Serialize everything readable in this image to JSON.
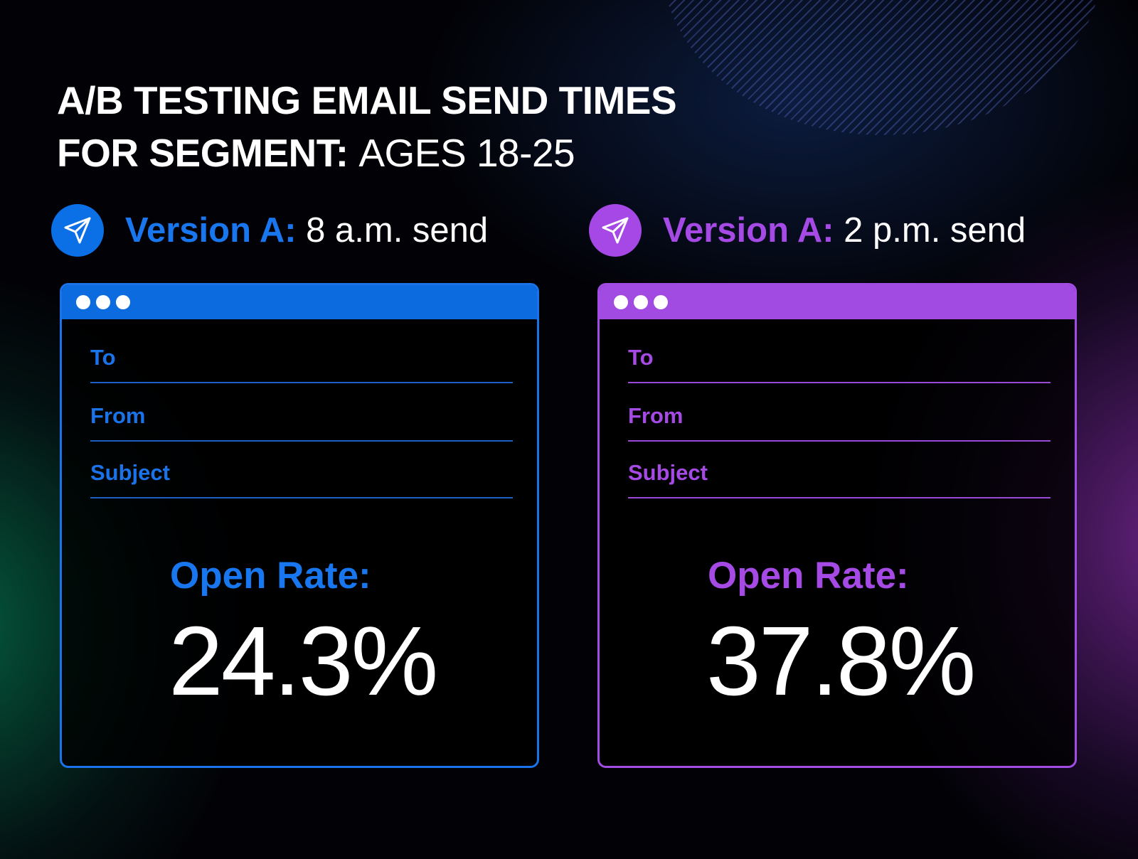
{
  "title": {
    "line1": "A/B TESTING EMAIL SEND TIMES",
    "line2_bold": "FOR SEGMENT:",
    "line2_light": "AGES 18-25"
  },
  "versions": [
    {
      "label": "Version A:",
      "time": "8 a.m. send",
      "color": "#1877ee",
      "icon": "send-icon",
      "fields": [
        "To",
        "From",
        "Subject"
      ],
      "open_rate_label": "Open Rate:",
      "open_rate_value": "24.3%"
    },
    {
      "label": "Version A:",
      "time": "2 p.m. send",
      "color": "#a64ae6",
      "icon": "send-icon",
      "fields": [
        "To",
        "From",
        "Subject"
      ],
      "open_rate_label": "Open Rate:",
      "open_rate_value": "37.8%"
    }
  ]
}
